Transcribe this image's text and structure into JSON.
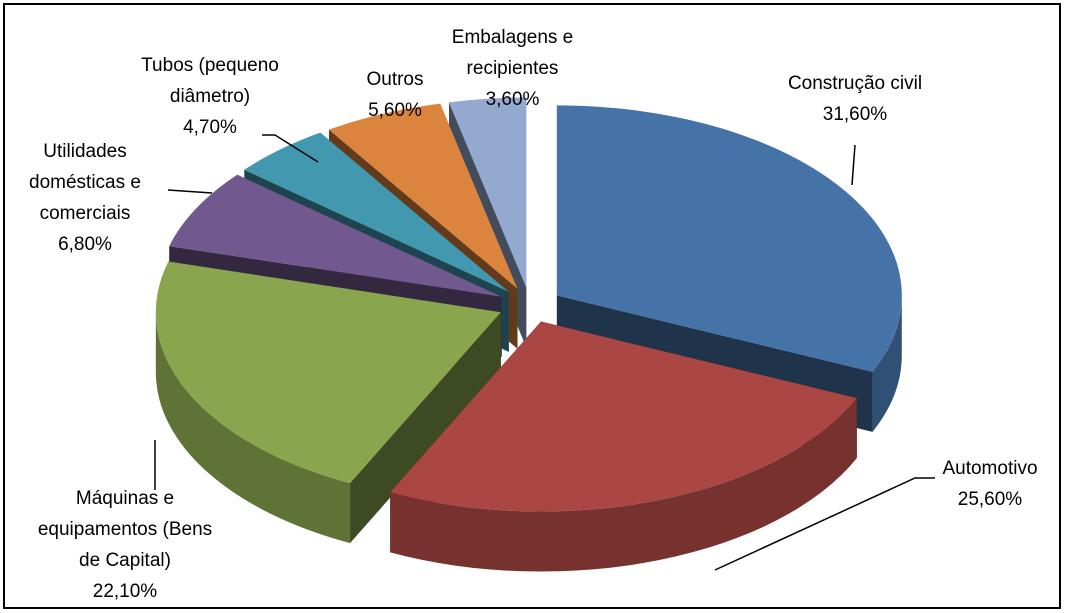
{
  "chart_data": {
    "type": "pie",
    "categories": [
      "Construção civil",
      "Automotivo",
      "Máquinas e equipamentos (Bens de Capital)",
      "Utilidades domésticas e comerciais",
      "Tubos (pequeno diâmetro)",
      "Outros",
      "Embalagens e recipientes"
    ],
    "values": [
      31.6,
      25.6,
      22.1,
      6.8,
      4.7,
      5.6,
      3.6
    ],
    "value_labels": [
      "31,60%",
      "25,60%",
      "22,10%",
      "6,80%",
      "4,70%",
      "5,60%",
      "3,60%"
    ],
    "colors": [
      "#4572a7",
      "#aa4643",
      "#89a54e",
      "#71588f",
      "#4198af",
      "#db843d",
      "#93a9cf"
    ]
  }
}
